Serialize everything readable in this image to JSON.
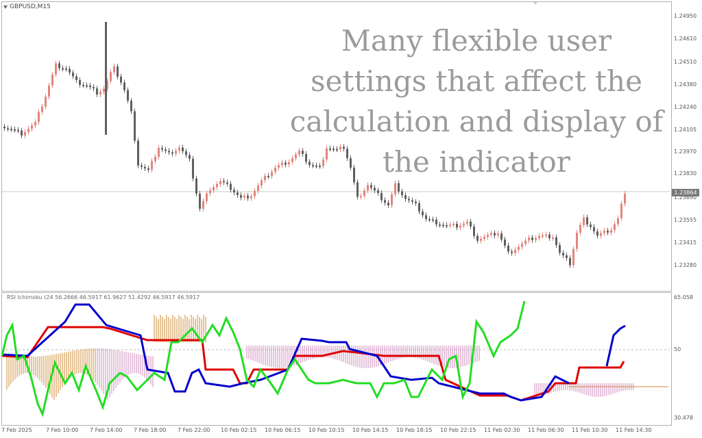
{
  "chart": {
    "symbol_label": "GBPUSD,M15",
    "current_price": "1.23864",
    "price_ticks": [
      "1.24950",
      "1.24610",
      "1.24510",
      "1.24380",
      "1.24240",
      "1.24105",
      "1.23970",
      "1.23830",
      "1.23690",
      "1.23555",
      "1.23415",
      "1.23280"
    ],
    "time_ticks": [
      "7 Feb 2025",
      "7 Feb 10:00",
      "7 Feb 14:00",
      "7 Feb 18:00",
      "7 Feb 22:00",
      "10 Feb 02:15",
      "10 Feb 06:15",
      "10 Feb 10:15",
      "10 Feb 14:15",
      "10 Feb 18:15",
      "10 Feb 22:15",
      "11 Feb 02:30",
      "11 Feb 06:30",
      "11 Feb 10:30",
      "11 Feb 14:30"
    ],
    "bull_color": "#e3857b",
    "bear_color": "#5f5f5f"
  },
  "indicator": {
    "title": "RSI Ichimoku (24 56.2666 46.5917 61.9627 51.4292 46.5917 46.5917",
    "y_ticks": [
      "65.058",
      "50",
      "30.478"
    ],
    "colors": {
      "rsi": "#22dd22",
      "tenkan": "#0000cc",
      "kijun": "#dd0000",
      "cloud_up": "#cc8833",
      "cloud_down": "#cc88bb"
    }
  },
  "overlay_text": {
    "line1": "Many flexible user",
    "line2": "settings that affect the",
    "line3": "calculation and display of",
    "line4": "the indicator"
  },
  "chart_data": {
    "type": "line",
    "rsi_series_level": {
      "min": 30.478,
      "max": 65.058,
      "mid": 50
    },
    "price_range": {
      "min": 1.2328,
      "max": 1.2495
    }
  }
}
